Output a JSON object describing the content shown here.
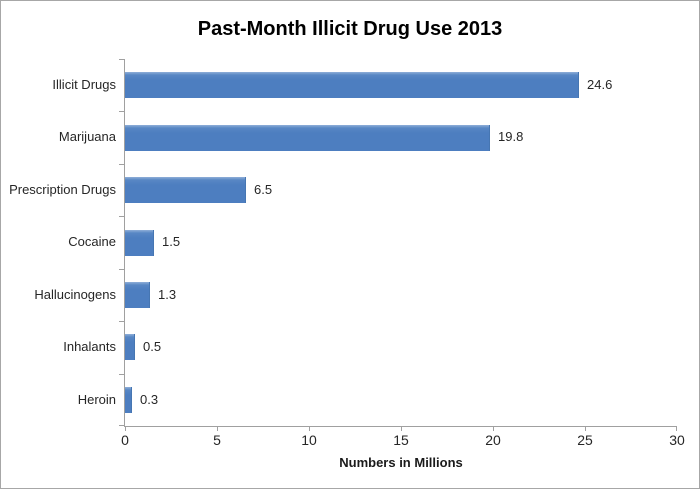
{
  "frame": {
    "background": "#ffffff",
    "border_color": "#a7a7a7"
  },
  "chart_data": {
    "type": "bar",
    "orientation": "horizontal",
    "title": "Past-Month Illicit Drug Use 2013",
    "categories": [
      "Illicit Drugs",
      "Marijuana",
      "Prescription Drugs",
      "Cocaine",
      "Hallucinogens",
      "Inhalants",
      "Heroin"
    ],
    "values": [
      24.6,
      19.8,
      6.5,
      1.5,
      1.3,
      0.5,
      0.3
    ],
    "value_labels": [
      "24.6",
      "19.8",
      "6.5",
      "1.5",
      "1.3",
      "0.5",
      "0.3"
    ],
    "xlabel": "Numbers in Millions",
    "ylabel": "",
    "xlim": [
      0,
      30
    ],
    "xticks": [
      "0",
      "5",
      "10",
      "15",
      "20",
      "25",
      "30"
    ],
    "grid": false,
    "legend": "none",
    "data_labels_shown": true,
    "colors": {
      "bar": "#4d7ec0",
      "bar_highlight": "#8fafd8",
      "axis_line": "#a0a0a0",
      "tick_label": "#262626",
      "category_label": "#262626",
      "value_label": "#262626",
      "title": "#000000",
      "xlabel": "#1a1a1a"
    }
  }
}
